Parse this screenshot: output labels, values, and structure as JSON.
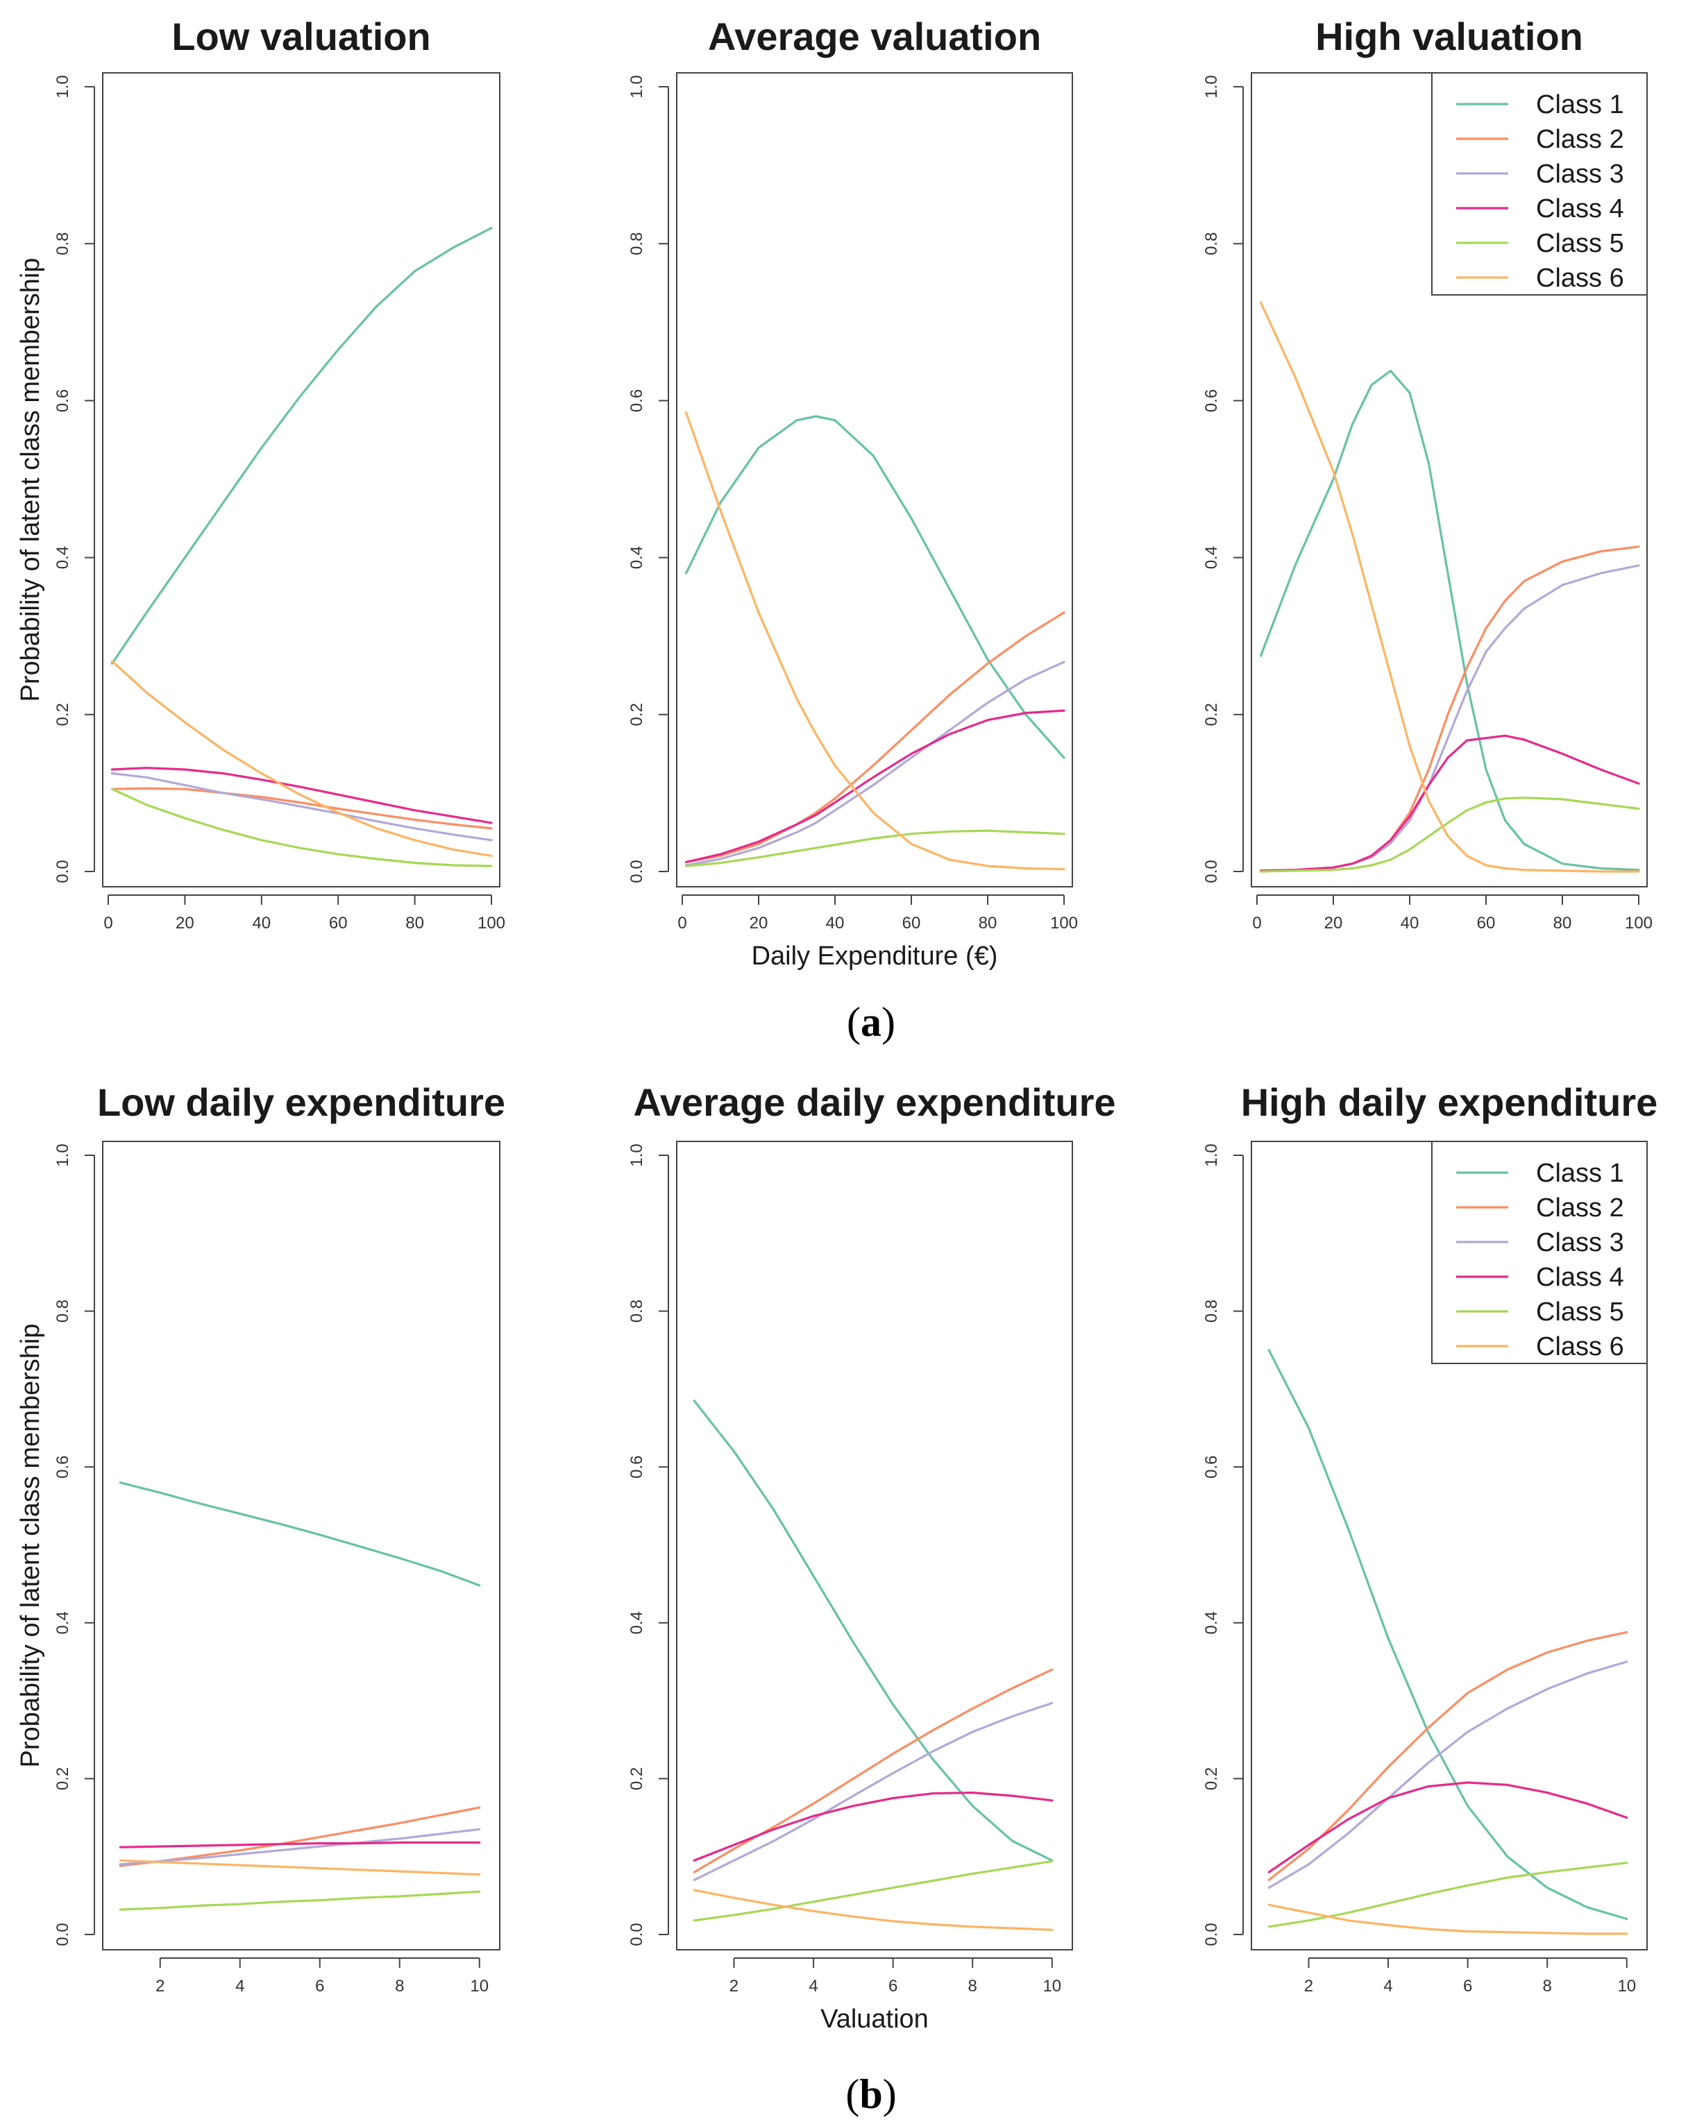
{
  "figure": {
    "caption_a": {
      "open": "(",
      "letter": "a",
      "close": ")"
    },
    "caption_b": {
      "open": "(",
      "letter": "b",
      "close": ")"
    }
  },
  "class_colors": [
    "#66c2a5",
    "#fc8d62",
    "#b3a8d8",
    "#e7298a",
    "#a6d854",
    "#fdb462"
  ],
  "chart_data": [
    {
      "type": "line",
      "title": "Low valuation",
      "xlabel": "",
      "ylabel": "Probability of latent class membership",
      "xlim": [
        0,
        100
      ],
      "ylim": [
        0,
        1
      ],
      "xticks": [
        0,
        20,
        40,
        60,
        80,
        100
      ],
      "yticks": [
        0.0,
        0.2,
        0.4,
        0.6,
        0.8,
        1.0
      ],
      "legend": null,
      "x": [
        1,
        10,
        20,
        30,
        40,
        50,
        60,
        70,
        80,
        90,
        100
      ],
      "series": [
        {
          "name": "Class 1",
          "values": [
            0.265,
            0.33,
            0.4,
            0.47,
            0.54,
            0.605,
            0.665,
            0.72,
            0.765,
            0.795,
            0.82
          ]
        },
        {
          "name": "Class 2",
          "values": [
            0.105,
            0.106,
            0.105,
            0.1,
            0.095,
            0.088,
            0.08,
            0.073,
            0.066,
            0.06,
            0.055
          ]
        },
        {
          "name": "Class 3",
          "values": [
            0.125,
            0.12,
            0.11,
            0.1,
            0.092,
            0.083,
            0.074,
            0.064,
            0.055,
            0.047,
            0.04
          ]
        },
        {
          "name": "Class 4",
          "values": [
            0.13,
            0.132,
            0.13,
            0.125,
            0.117,
            0.108,
            0.098,
            0.088,
            0.078,
            0.07,
            0.062
          ]
        },
        {
          "name": "Class 5",
          "values": [
            0.105,
            0.085,
            0.068,
            0.053,
            0.04,
            0.03,
            0.022,
            0.016,
            0.011,
            0.008,
            0.007
          ]
        },
        {
          "name": "Class 6",
          "values": [
            0.268,
            0.228,
            0.19,
            0.155,
            0.125,
            0.098,
            0.075,
            0.055,
            0.04,
            0.028,
            0.02
          ]
        }
      ]
    },
    {
      "type": "line",
      "title": "Average valuation",
      "xlabel": "Daily Expenditure (€)",
      "ylabel": "",
      "xlim": [
        0,
        100
      ],
      "ylim": [
        0,
        1
      ],
      "xticks": [
        0,
        20,
        40,
        60,
        80,
        100
      ],
      "yticks": [
        0.0,
        0.2,
        0.4,
        0.6,
        0.8,
        1.0
      ],
      "legend": null,
      "x": [
        1,
        10,
        20,
        30,
        35,
        40,
        50,
        60,
        70,
        80,
        90,
        100
      ],
      "series": [
        {
          "name": "Class 1",
          "values": [
            0.38,
            0.47,
            0.54,
            0.575,
            0.58,
            0.575,
            0.53,
            0.45,
            0.36,
            0.27,
            0.2,
            0.145
          ]
        },
        {
          "name": "Class 2",
          "values": [
            0.012,
            0.02,
            0.035,
            0.06,
            0.075,
            0.093,
            0.135,
            0.18,
            0.225,
            0.265,
            0.3,
            0.33
          ]
        },
        {
          "name": "Class 3",
          "values": [
            0.008,
            0.016,
            0.03,
            0.05,
            0.062,
            0.078,
            0.11,
            0.145,
            0.18,
            0.215,
            0.245,
            0.267
          ]
        },
        {
          "name": "Class 4",
          "values": [
            0.012,
            0.022,
            0.038,
            0.06,
            0.072,
            0.088,
            0.12,
            0.15,
            0.175,
            0.193,
            0.202,
            0.205
          ]
        },
        {
          "name": "Class 5",
          "values": [
            0.007,
            0.011,
            0.018,
            0.026,
            0.03,
            0.034,
            0.042,
            0.048,
            0.051,
            0.052,
            0.05,
            0.048
          ]
        },
        {
          "name": "Class 6",
          "values": [
            0.585,
            0.46,
            0.33,
            0.22,
            0.175,
            0.135,
            0.075,
            0.035,
            0.015,
            0.007,
            0.004,
            0.003
          ]
        }
      ]
    },
    {
      "type": "line",
      "title": "High valuation",
      "xlabel": "",
      "ylabel": "",
      "xlim": [
        0,
        100
      ],
      "ylim": [
        0,
        1
      ],
      "xticks": [
        0,
        20,
        40,
        60,
        80,
        100
      ],
      "yticks": [
        0.0,
        0.2,
        0.4,
        0.6,
        0.8,
        1.0
      ],
      "legend": "top-right",
      "x": [
        1,
        10,
        20,
        25,
        30,
        35,
        40,
        45,
        50,
        55,
        60,
        65,
        70,
        80,
        90,
        100
      ],
      "series": [
        {
          "name": "Class 1",
          "values": [
            0.275,
            0.39,
            0.5,
            0.57,
            0.62,
            0.638,
            0.61,
            0.52,
            0.38,
            0.24,
            0.13,
            0.065,
            0.035,
            0.01,
            0.004,
            0.002
          ]
        },
        {
          "name": "Class 2",
          "values": [
            0.001,
            0.002,
            0.005,
            0.01,
            0.02,
            0.04,
            0.075,
            0.13,
            0.2,
            0.26,
            0.31,
            0.345,
            0.37,
            0.395,
            0.408,
            0.414
          ]
        },
        {
          "name": "Class 3",
          "values": [
            0.001,
            0.002,
            0.005,
            0.01,
            0.018,
            0.036,
            0.065,
            0.11,
            0.17,
            0.23,
            0.28,
            0.31,
            0.335,
            0.365,
            0.38,
            0.39
          ]
        },
        {
          "name": "Class 4",
          "values": [
            0.001,
            0.002,
            0.005,
            0.01,
            0.02,
            0.04,
            0.07,
            0.11,
            0.145,
            0.167,
            0.17,
            0.173,
            0.168,
            0.15,
            0.13,
            0.112
          ]
        },
        {
          "name": "Class 5",
          "values": [
            0.0,
            0.001,
            0.002,
            0.004,
            0.008,
            0.015,
            0.028,
            0.045,
            0.062,
            0.078,
            0.088,
            0.093,
            0.094,
            0.092,
            0.086,
            0.08
          ]
        },
        {
          "name": "Class 6",
          "values": [
            0.725,
            0.63,
            0.51,
            0.43,
            0.34,
            0.25,
            0.16,
            0.09,
            0.045,
            0.02,
            0.008,
            0.004,
            0.002,
            0.001,
            0.0,
            0.0
          ]
        }
      ]
    },
    {
      "type": "line",
      "title": "Low daily expenditure",
      "xlabel": "",
      "ylabel": "Probability of latent class membership",
      "xlim": [
        0.7,
        10.3
      ],
      "ylim": [
        0,
        1
      ],
      "xticks": [
        2,
        4,
        6,
        8,
        10
      ],
      "yticks": [
        0.0,
        0.2,
        0.4,
        0.6,
        0.8,
        1.0
      ],
      "legend": null,
      "x": [
        1,
        2,
        3,
        4,
        5,
        6,
        7,
        8,
        9,
        10
      ],
      "series": [
        {
          "name": "Class 1",
          "values": [
            0.58,
            0.567,
            0.553,
            0.54,
            0.527,
            0.513,
            0.498,
            0.483,
            0.467,
            0.448
          ]
        },
        {
          "name": "Class 2",
          "values": [
            0.088,
            0.094,
            0.101,
            0.108,
            0.116,
            0.125,
            0.134,
            0.143,
            0.153,
            0.163
          ]
        },
        {
          "name": "Class 3",
          "values": [
            0.09,
            0.094,
            0.098,
            0.103,
            0.108,
            0.113,
            0.118,
            0.123,
            0.129,
            0.135
          ]
        },
        {
          "name": "Class 4",
          "values": [
            0.112,
            0.113,
            0.114,
            0.115,
            0.116,
            0.117,
            0.117,
            0.118,
            0.118,
            0.118
          ]
        },
        {
          "name": "Class 5",
          "values": [
            0.032,
            0.034,
            0.037,
            0.039,
            0.042,
            0.044,
            0.047,
            0.049,
            0.052,
            0.055
          ]
        },
        {
          "name": "Class 6",
          "values": [
            0.095,
            0.093,
            0.091,
            0.089,
            0.087,
            0.085,
            0.083,
            0.081,
            0.079,
            0.077
          ]
        }
      ]
    },
    {
      "type": "line",
      "title": "Average daily expenditure",
      "xlabel": "Valuation",
      "ylabel": "",
      "xlim": [
        0.7,
        10.3
      ],
      "ylim": [
        0,
        1
      ],
      "xticks": [
        2,
        4,
        6,
        8,
        10
      ],
      "yticks": [
        0.0,
        0.2,
        0.4,
        0.6,
        0.8,
        1.0
      ],
      "legend": null,
      "x": [
        1,
        2,
        3,
        4,
        5,
        6,
        7,
        8,
        9,
        10
      ],
      "series": [
        {
          "name": "Class 1",
          "values": [
            0.685,
            0.62,
            0.545,
            0.46,
            0.375,
            0.295,
            0.225,
            0.165,
            0.12,
            0.095
          ]
        },
        {
          "name": "Class 2",
          "values": [
            0.08,
            0.11,
            0.138,
            0.168,
            0.2,
            0.232,
            0.262,
            0.29,
            0.316,
            0.34
          ]
        },
        {
          "name": "Class 3",
          "values": [
            0.07,
            0.095,
            0.12,
            0.148,
            0.178,
            0.207,
            0.235,
            0.26,
            0.28,
            0.297
          ]
        },
        {
          "name": "Class 4",
          "values": [
            0.095,
            0.115,
            0.135,
            0.152,
            0.165,
            0.175,
            0.181,
            0.182,
            0.178,
            0.172
          ]
        },
        {
          "name": "Class 5",
          "values": [
            0.018,
            0.025,
            0.033,
            0.042,
            0.051,
            0.06,
            0.069,
            0.078,
            0.086,
            0.094
          ]
        },
        {
          "name": "Class 6",
          "values": [
            0.057,
            0.047,
            0.038,
            0.03,
            0.023,
            0.017,
            0.013,
            0.01,
            0.008,
            0.006
          ]
        }
      ]
    },
    {
      "type": "line",
      "title": "High daily expenditure",
      "xlabel": "",
      "ylabel": "",
      "xlim": [
        0.7,
        10.3
      ],
      "ylim": [
        0,
        1
      ],
      "xticks": [
        2,
        4,
        6,
        8,
        10
      ],
      "yticks": [
        0.0,
        0.2,
        0.4,
        0.6,
        0.8,
        1.0
      ],
      "legend": "top-right",
      "x": [
        1,
        2,
        3,
        4,
        5,
        6,
        7,
        8,
        9,
        10
      ],
      "series": [
        {
          "name": "Class 1",
          "values": [
            0.75,
            0.65,
            0.52,
            0.38,
            0.26,
            0.165,
            0.1,
            0.06,
            0.035,
            0.02
          ]
        },
        {
          "name": "Class 2",
          "values": [
            0.07,
            0.11,
            0.16,
            0.215,
            0.265,
            0.31,
            0.34,
            0.362,
            0.377,
            0.388
          ]
        },
        {
          "name": "Class 3",
          "values": [
            0.06,
            0.09,
            0.13,
            0.175,
            0.22,
            0.26,
            0.29,
            0.315,
            0.335,
            0.35
          ]
        },
        {
          "name": "Class 4",
          "values": [
            0.08,
            0.115,
            0.148,
            0.175,
            0.19,
            0.195,
            0.192,
            0.182,
            0.168,
            0.15
          ]
        },
        {
          "name": "Class 5",
          "values": [
            0.01,
            0.018,
            0.028,
            0.04,
            0.052,
            0.063,
            0.073,
            0.08,
            0.086,
            0.092
          ]
        },
        {
          "name": "Class 6",
          "values": [
            0.038,
            0.028,
            0.018,
            0.012,
            0.007,
            0.004,
            0.003,
            0.002,
            0.001,
            0.001
          ]
        }
      ]
    }
  ]
}
